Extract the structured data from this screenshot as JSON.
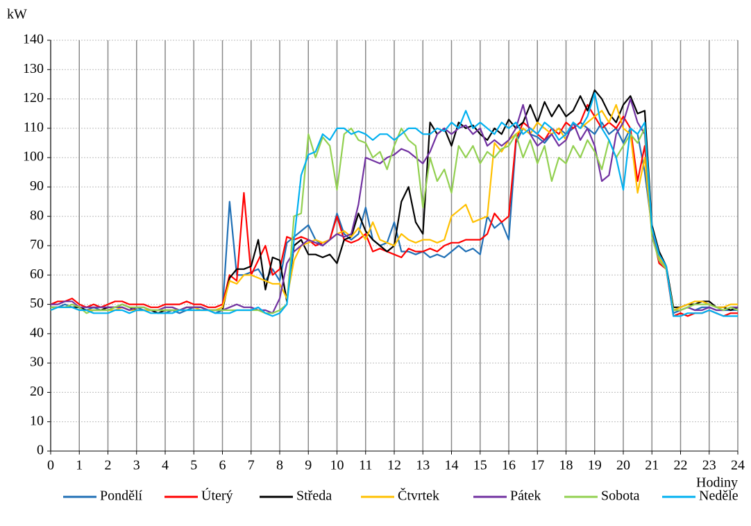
{
  "chart_data": {
    "type": "line",
    "y_label": "kW",
    "x_label": "Hodiny",
    "x": [
      0,
      0.25,
      0.5,
      0.75,
      1,
      1.25,
      1.5,
      1.75,
      2,
      2.25,
      2.5,
      2.75,
      3,
      3.25,
      3.5,
      3.75,
      4,
      4.25,
      4.5,
      4.75,
      5,
      5.25,
      5.5,
      5.75,
      6,
      6.25,
      6.5,
      6.75,
      7,
      7.25,
      7.5,
      7.75,
      8,
      8.25,
      8.5,
      8.75,
      9,
      9.25,
      9.5,
      9.75,
      10,
      10.25,
      10.5,
      10.75,
      11,
      11.25,
      11.5,
      11.75,
      12,
      12.25,
      12.5,
      12.75,
      13,
      13.25,
      13.5,
      13.75,
      14,
      14.25,
      14.5,
      14.75,
      15,
      15.25,
      15.5,
      15.75,
      16,
      16.25,
      16.5,
      16.75,
      17,
      17.25,
      17.5,
      17.75,
      18,
      18.25,
      18.5,
      18.75,
      19,
      19.25,
      19.5,
      19.75,
      20,
      20.25,
      20.5,
      20.75,
      21,
      21.25,
      21.5,
      21.75,
      22,
      22.25,
      22.5,
      22.75,
      23,
      23.25,
      23.5,
      23.75,
      24
    ],
    "xlim": [
      0,
      24
    ],
    "xticks": [
      0,
      1,
      2,
      3,
      4,
      5,
      6,
      7,
      8,
      9,
      10,
      11,
      12,
      13,
      14,
      15,
      16,
      17,
      18,
      19,
      20,
      21,
      22,
      23,
      24
    ],
    "ylim": [
      0,
      140
    ],
    "yticks": [
      0,
      10,
      20,
      30,
      40,
      50,
      60,
      70,
      80,
      90,
      100,
      110,
      120,
      130,
      140
    ],
    "grid": true,
    "legend": "bottom",
    "series": [
      {
        "name": "Pondělí",
        "color": "#1f6fb5",
        "values": [
          49,
          49,
          50,
          49,
          49,
          48,
          49,
          48,
          48,
          49,
          49,
          48,
          49,
          48,
          48,
          47,
          47,
          48,
          47,
          48,
          49,
          49,
          48,
          47,
          48,
          85,
          60,
          60,
          61,
          62,
          58,
          62,
          58,
          71,
          73,
          75,
          77,
          72,
          70,
          72,
          81,
          74,
          72,
          74,
          83,
          72,
          70,
          71,
          78,
          68,
          68,
          67,
          68,
          66,
          67,
          66,
          68,
          70,
          68,
          69,
          67,
          80,
          76,
          78,
          72,
          105,
          110,
          108,
          107,
          105,
          108,
          110,
          108,
          110,
          112,
          110,
          108,
          112,
          108,
          110,
          105,
          110,
          108,
          95,
          76,
          68,
          62,
          47,
          48,
          49,
          48,
          49,
          49,
          48,
          48,
          48,
          48
        ]
      },
      {
        "name": "Úterý",
        "color": "#ff0000",
        "values": [
          50,
          51,
          51,
          52,
          50,
          49,
          50,
          49,
          50,
          51,
          51,
          50,
          50,
          50,
          49,
          49,
          50,
          50,
          50,
          51,
          50,
          50,
          49,
          49,
          50,
          60,
          58,
          88,
          60,
          65,
          70,
          60,
          62,
          73,
          72,
          73,
          72,
          70,
          71,
          72,
          80,
          72,
          71,
          72,
          74,
          68,
          69,
          68,
          67,
          66,
          69,
          68,
          68,
          69,
          68,
          70,
          71,
          71,
          72,
          72,
          72,
          74,
          81,
          78,
          80,
          106,
          112,
          110,
          108,
          106,
          110,
          108,
          112,
          110,
          112,
          118,
          114,
          110,
          112,
          110,
          114,
          110,
          92,
          104,
          75,
          64,
          62,
          46,
          47,
          46,
          47,
          47,
          48,
          47,
          46,
          47,
          47
        ]
      },
      {
        "name": "Středa",
        "color": "#000000",
        "values": [
          49,
          49,
          49,
          49,
          49,
          48,
          48,
          48,
          49,
          49,
          50,
          49,
          48,
          48,
          48,
          47,
          48,
          48,
          48,
          49,
          49,
          49,
          48,
          48,
          48,
          59,
          62,
          62,
          63,
          72,
          55,
          66,
          65,
          51,
          70,
          72,
          67,
          67,
          66,
          67,
          64,
          72,
          73,
          81,
          75,
          72,
          70,
          68,
          70,
          85,
          90,
          78,
          74,
          112,
          108,
          110,
          104,
          112,
          110,
          111,
          108,
          106,
          110,
          108,
          113,
          110,
          112,
          118,
          112,
          119,
          114,
          118,
          114,
          116,
          121,
          116,
          123,
          120,
          115,
          112,
          118,
          121,
          115,
          116,
          77,
          68,
          63,
          49,
          49,
          50,
          50,
          51,
          51,
          49,
          49,
          48,
          49
        ]
      },
      {
        "name": "Čtvrtek",
        "color": "#ffc000",
        "values": [
          48,
          49,
          49,
          49,
          48,
          48,
          48,
          48,
          48,
          48,
          49,
          48,
          48,
          48,
          48,
          48,
          48,
          48,
          48,
          49,
          49,
          48,
          48,
          48,
          49,
          58,
          57,
          60,
          60,
          59,
          58,
          57,
          57,
          52,
          65,
          70,
          71,
          72,
          71,
          72,
          74,
          75,
          73,
          76,
          72,
          78,
          72,
          71,
          70,
          74,
          72,
          71,
          72,
          72,
          71,
          72,
          80,
          82,
          84,
          78,
          79,
          80,
          105,
          102,
          106,
          108,
          110,
          108,
          112,
          110,
          108,
          110,
          106,
          112,
          110,
          112,
          114,
          116,
          112,
          118,
          110,
          108,
          88,
          100,
          74,
          66,
          62,
          48,
          49,
          50,
          51,
          51,
          50,
          49,
          49,
          50,
          50
        ]
      },
      {
        "name": "Pátek",
        "color": "#7030a0",
        "values": [
          50,
          50,
          51,
          51,
          49,
          49,
          49,
          49,
          49,
          49,
          49,
          48,
          49,
          49,
          48,
          48,
          49,
          49,
          48,
          49,
          49,
          49,
          48,
          48,
          48,
          49,
          50,
          49,
          49,
          48,
          48,
          47,
          52,
          64,
          68,
          70,
          72,
          71,
          70,
          72,
          74,
          73,
          74,
          84,
          100,
          99,
          98,
          100,
          101,
          103,
          102,
          100,
          98,
          102,
          108,
          110,
          108,
          110,
          111,
          108,
          110,
          104,
          106,
          104,
          106,
          110,
          118,
          108,
          104,
          106,
          108,
          104,
          106,
          112,
          106,
          110,
          104,
          92,
          94,
          108,
          112,
          120,
          112,
          108,
          74,
          65,
          62,
          48,
          48,
          49,
          48,
          48,
          49,
          48,
          48,
          49,
          49
        ]
      },
      {
        "name": "Sobota",
        "color": "#92d050",
        "values": [
          49,
          49,
          49,
          50,
          49,
          47,
          48,
          48,
          48,
          49,
          50,
          49,
          49,
          49,
          48,
          48,
          48,
          48,
          48,
          48,
          48,
          48,
          48,
          48,
          48,
          48,
          48,
          48,
          48,
          48,
          47,
          47,
          48,
          50,
          80,
          81,
          108,
          100,
          107,
          104,
          89,
          108,
          110,
          106,
          105,
          100,
          102,
          96,
          104,
          110,
          106,
          104,
          83,
          100,
          92,
          96,
          88,
          104,
          100,
          104,
          98,
          102,
          100,
          103,
          104,
          108,
          100,
          106,
          98,
          104,
          92,
          100,
          98,
          104,
          100,
          106,
          102,
          96,
          106,
          100,
          104,
          108,
          105,
          110,
          73,
          65,
          62,
          48,
          48,
          49,
          50,
          50,
          50,
          49,
          48,
          49,
          48
        ]
      },
      {
        "name": "Neděle",
        "color": "#00b0f0",
        "values": [
          48,
          49,
          49,
          49,
          48,
          48,
          47,
          47,
          47,
          48,
          48,
          47,
          48,
          48,
          47,
          47,
          47,
          47,
          48,
          48,
          48,
          48,
          48,
          47,
          47,
          47,
          48,
          48,
          48,
          49,
          47,
          46,
          47,
          50,
          72,
          94,
          101,
          102,
          108,
          106,
          110,
          110,
          108,
          109,
          108,
          106,
          108,
          108,
          106,
          108,
          110,
          110,
          108,
          108,
          110,
          109,
          112,
          110,
          116,
          110,
          112,
          110,
          108,
          112,
          110,
          112,
          108,
          110,
          108,
          112,
          110,
          106,
          108,
          112,
          110,
          114,
          122,
          110,
          106,
          100,
          89,
          110,
          108,
          112,
          76,
          67,
          63,
          46,
          46,
          47,
          47,
          47,
          48,
          47,
          46,
          46,
          46
        ]
      }
    ]
  }
}
